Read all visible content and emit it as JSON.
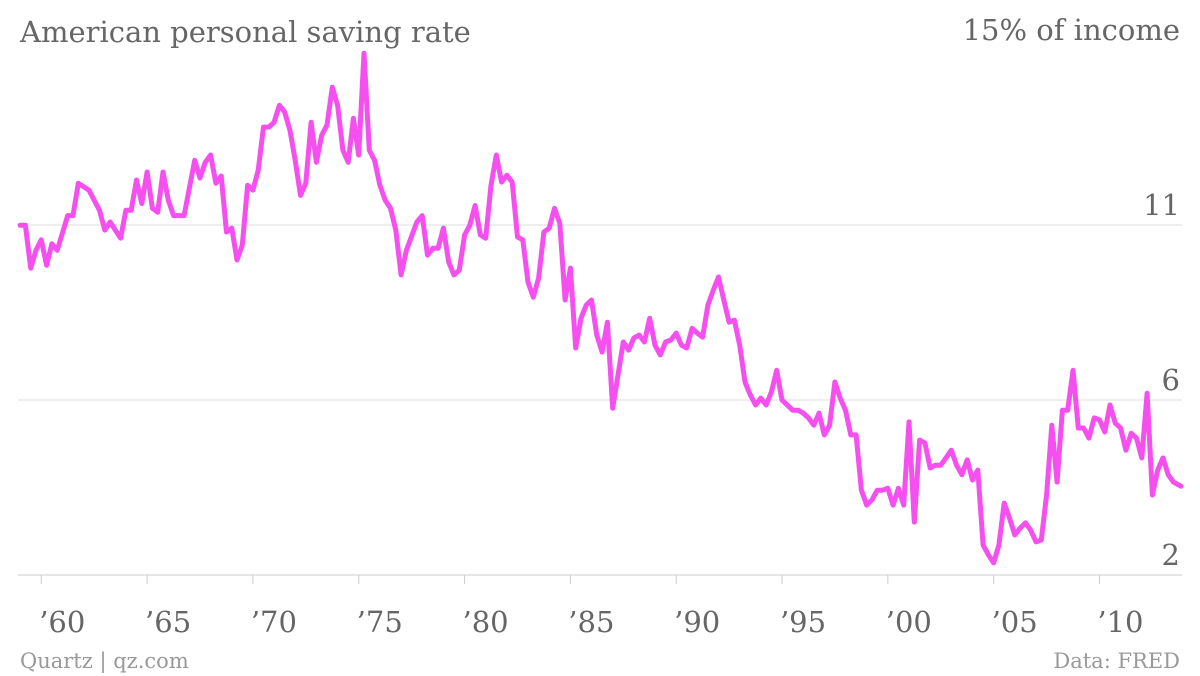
{
  "chart_data": {
    "type": "line",
    "title": "American personal saving rate",
    "source": "Data: FRED",
    "credit": "Quartz | qz.com",
    "color": "#f54ff0",
    "x": [
      1959.0,
      1959.25,
      1959.5,
      1959.75,
      1960.0,
      1960.25,
      1960.5,
      1960.75,
      1961.25,
      1961.5,
      1961.75,
      1962.25,
      1962.75,
      1963.0,
      1963.25,
      1963.75,
      1964.0,
      1964.25,
      1964.5,
      1964.75,
      1965.0,
      1965.25,
      1965.5,
      1965.75,
      1966.0,
      1966.25,
      1966.75,
      1967.25,
      1967.5,
      1967.75,
      1968.0,
      1968.25,
      1968.5,
      1968.75,
      1969.0,
      1969.25,
      1969.5,
      1969.75,
      1970.0,
      1970.25,
      1970.5,
      1970.75,
      1971.0,
      1971.25,
      1971.5,
      1971.75,
      1972.0,
      1972.25,
      1972.5,
      1972.75,
      1973.0,
      1973.25,
      1973.5,
      1973.75,
      1974.0,
      1974.25,
      1974.5,
      1974.75,
      1975.0,
      1975.25,
      1975.5,
      1975.75,
      1976.0,
      1976.25,
      1976.5,
      1976.75,
      1977.0,
      1977.25,
      1977.75,
      1978.0,
      1978.25,
      1978.5,
      1978.75,
      1979.0,
      1979.25,
      1979.5,
      1979.75,
      1980.0,
      1980.25,
      1980.5,
      1980.75,
      1981.0,
      1981.25,
      1981.5,
      1981.75,
      1982.0,
      1982.25,
      1982.5,
      1982.75,
      1983.0,
      1983.25,
      1983.5,
      1983.75,
      1984.0,
      1984.25,
      1984.5,
      1984.75,
      1985.0,
      1985.25,
      1985.5,
      1985.75,
      1986.0,
      1986.25,
      1986.5,
      1986.75,
      1987.0,
      1987.25,
      1987.5,
      1987.75,
      1988.0,
      1988.25,
      1988.5,
      1988.75,
      1989.0,
      1989.25,
      1989.5,
      1989.75,
      1990.0,
      1990.25,
      1990.5,
      1990.75,
      1991.0,
      1991.25,
      1991.5,
      1991.75,
      1992.0,
      1992.25,
      1992.5,
      1992.75,
      1993.0,
      1993.25,
      1993.5,
      1993.75,
      1994.0,
      1994.25,
      1994.5,
      1994.75,
      1995.0,
      1995.25,
      1995.5,
      1995.75,
      1996.0,
      1996.25,
      1996.5,
      1996.75,
      1997.0,
      1997.25,
      1997.5,
      1997.75,
      1998.0,
      1998.25,
      1998.5,
      1998.75,
      1999.0,
      1999.25,
      1999.5,
      1999.75,
      2000.0,
      2000.25,
      2000.5,
      2000.75,
      2001.0,
      2001.25,
      2001.5,
      2001.75,
      2002.0,
      2002.25,
      2002.5,
      2002.75,
      2003.0,
      2003.25,
      2003.5,
      2003.75,
      2004.0,
      2004.25,
      2004.5,
      2004.75,
      2005.0,
      2005.25,
      2005.5,
      2005.75,
      2006.0,
      2006.25,
      2006.5,
      2006.75,
      2007.0,
      2007.25,
      2007.5,
      2007.75,
      2008.0,
      2008.25,
      2008.5,
      2008.75,
      2009.0,
      2009.25,
      2009.5,
      2009.75,
      2010.0,
      2010.25,
      2010.5,
      2010.75,
      2011.0,
      2011.25,
      2011.5,
      2011.75,
      2012.0,
      2012.25,
      2012.5,
      2012.75,
      2013.0,
      2013.25,
      2013.5,
      2013.85
    ],
    "values": [
      10.66,
      10.66,
      9.6,
      10.04,
      10.3,
      9.67,
      10.2,
      10.04,
      10.9,
      10.9,
      11.7,
      11.53,
      11.03,
      10.54,
      10.74,
      10.34,
      11.03,
      11.03,
      11.78,
      11.2,
      11.98,
      11.08,
      10.98,
      11.98,
      11.28,
      10.9,
      10.9,
      12.27,
      11.83,
      12.22,
      12.4,
      11.7,
      11.88,
      10.49,
      10.59,
      9.8,
      10.17,
      11.65,
      11.53,
      12.02,
      13.09,
      13.09,
      13.21,
      13.63,
      13.46,
      13.01,
      12.27,
      11.4,
      11.7,
      13.21,
      12.22,
      12.89,
      13.14,
      14.08,
      13.63,
      12.52,
      12.22,
      13.31,
      12.4,
      14.92,
      12.52,
      12.27,
      11.65,
      11.28,
      11.08,
      10.54,
      9.43,
      10.04,
      10.74,
      10.9,
      9.92,
      10.09,
      10.09,
      10.59,
      9.75,
      9.43,
      9.55,
      10.42,
      10.66,
      11.15,
      10.42,
      10.34,
      11.65,
      12.4,
      11.73,
      11.9,
      11.73,
      10.37,
      10.3,
      9.25,
      8.88,
      9.35,
      10.49,
      10.59,
      11.08,
      10.71,
      8.81,
      9.6,
      7.62,
      8.36,
      8.68,
      8.81,
      7.94,
      7.52,
      8.26,
      6.13,
      6.95,
      7.77,
      7.57,
      7.87,
      7.94,
      7.77,
      8.36,
      7.69,
      7.45,
      7.77,
      7.82,
      7.99,
      7.69,
      7.62,
      8.11,
      7.99,
      7.89,
      8.68,
      9.05,
      9.38,
      8.81,
      8.26,
      8.31,
      7.69,
      6.78,
      6.46,
      6.21,
      6.38,
      6.21,
      6.53,
      7.07,
      6.33,
      6.21,
      6.08,
      6.08,
      6.01,
      5.89,
      5.71,
      6.01,
      5.47,
      5.71,
      6.78,
      6.38,
      6.08,
      5.47,
      5.47,
      4.1,
      3.73,
      3.86,
      4.1,
      4.1,
      4.15,
      3.73,
      4.15,
      3.73,
      5.79,
      3.31,
      5.34,
      5.27,
      4.65,
      4.72,
      4.72,
      4.9,
      5.09,
      4.72,
      4.48,
      4.85,
      4.35,
      4.6,
      2.74,
      2.5,
      2.3,
      2.74,
      3.78,
      3.41,
      2.99,
      3.16,
      3.29,
      3.11,
      2.82,
      2.87,
      3.98,
      5.71,
      4.3,
      6.08,
      6.08,
      7.07,
      5.64,
      5.64,
      5.39,
      5.89,
      5.84,
      5.54,
      6.21,
      5.76,
      5.64,
      5.09,
      5.51,
      5.39,
      4.9,
      6.5,
      3.98,
      4.6,
      4.9,
      4.48,
      4.3,
      4.2
    ],
    "xlim": [
      1958.9,
      2013.9
    ],
    "xticks": [
      {
        "value": 1960,
        "label": "’60"
      },
      {
        "value": 1965,
        "label": "’65"
      },
      {
        "value": 1970,
        "label": "’70"
      },
      {
        "value": 1975,
        "label": "’75"
      },
      {
        "value": 1980,
        "label": "’80"
      },
      {
        "value": 1985,
        "label": "’85"
      },
      {
        "value": 1990,
        "label": "’90"
      },
      {
        "value": 1995,
        "label": "’95"
      },
      {
        "value": 2000,
        "label": "’00"
      },
      {
        "value": 2005,
        "label": "’05"
      },
      {
        "value": 2010,
        "label": "’10"
      }
    ],
    "ylim": [
      2,
      15
    ],
    "yticks": [
      2,
      {
        "value": 6.333,
        "label": "6"
      },
      {
        "value": 10.667,
        "label": "11"
      },
      {
        "value": 15,
        "label": "15% of income"
      }
    ],
    "grid": true
  }
}
